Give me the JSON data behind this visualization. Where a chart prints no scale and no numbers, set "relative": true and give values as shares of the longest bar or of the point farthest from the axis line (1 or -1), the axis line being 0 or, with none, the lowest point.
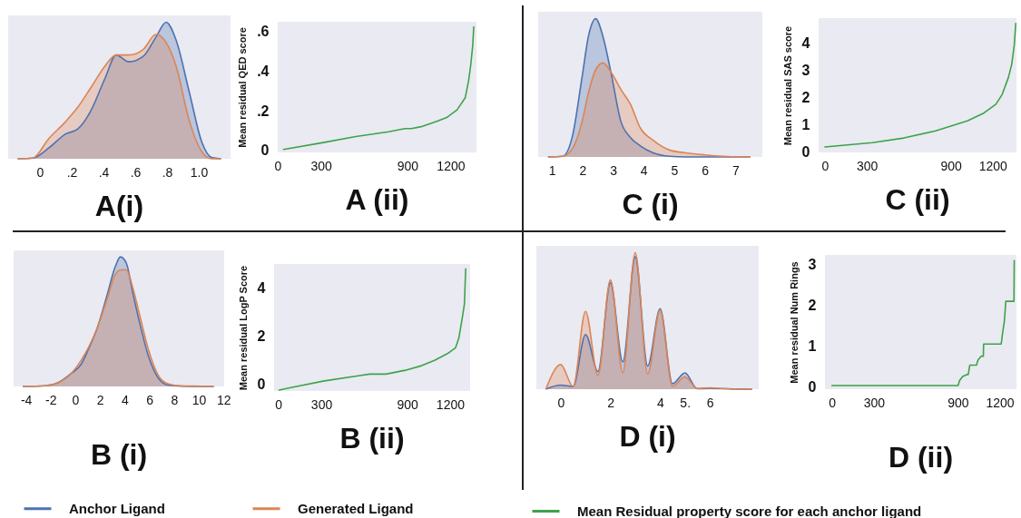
{
  "chart_data": [
    {
      "type": "area",
      "relative": true,
      "title": "A(i)",
      "x": [
        -0.14,
        -0.045,
        0.057,
        0.16,
        0.24,
        0.32,
        0.41,
        0.48,
        0.56,
        0.65,
        0.73,
        0.795,
        0.857,
        0.94,
        1.02,
        1.08,
        1.14
      ],
      "xlim": [
        -0.2,
        1.2
      ],
      "xticks": [
        0,
        {
          "value": 0.2,
          "label": ".2"
        },
        {
          "value": 0.4,
          "label": ".4"
        },
        {
          "value": 0.6,
          "label": ".6"
        },
        {
          "value": 0.8,
          "label": ".8"
        },
        {
          "value": 1,
          "label": "1.0"
        }
      ],
      "series": [
        {
          "color": "#4c72b0",
          "values": [
            0,
            0.005,
            0.08,
            0.18,
            0.22,
            0.35,
            0.59,
            0.76,
            0.71,
            0.75,
            0.89,
            1,
            0.87,
            0.49,
            0.12,
            0.01,
            0
          ]
        },
        {
          "color": "#dd8452",
          "values": [
            0,
            0.005,
            0.15,
            0.27,
            0.38,
            0.52,
            0.68,
            0.76,
            0.76,
            0.8,
            0.91,
            0.85,
            0.68,
            0.28,
            0.05,
            0,
            0
          ]
        }
      ]
    },
    {
      "type": "line",
      "title": "A (ii)",
      "ylabel": "Mean residual QED score",
      "x": [
        40,
        317,
        543,
        770,
        883,
        928,
        996,
        1109,
        1177,
        1245,
        1302,
        1325,
        1340,
        1354,
        1361
      ],
      "xlim": [
        0,
        1380
      ],
      "xticks": [
        0,
        300,
        900,
        1200
      ],
      "ylim": [
        -0.01,
        0.65
      ],
      "yticks": [
        0,
        {
          "value": 0.2,
          "label": ".2"
        },
        {
          "value": 0.4,
          "label": ".4"
        },
        {
          "value": 0.6,
          "label": ".6"
        }
      ],
      "series": [
        {
          "color": "#3da34a",
          "values": [
            0.005,
            0.04,
            0.07,
            0.094,
            0.11,
            0.11,
            0.12,
            0.148,
            0.168,
            0.205,
            0.266,
            0.35,
            0.43,
            0.53,
            0.625
          ]
        }
      ]
    },
    {
      "type": "area",
      "relative": true,
      "title": "C (i)",
      "x": [
        0.87,
        1.35,
        1.67,
        1.98,
        2.2,
        2.43,
        2.67,
        2.94,
        3.25,
        3.57,
        3.89,
        4.31,
        4.84,
        5.37,
        6.0,
        6.75,
        7.49
      ],
      "xlim": [
        0.55,
        7.88
      ],
      "xticks": [
        1,
        2,
        3,
        4,
        5,
        6,
        7
      ],
      "series": [
        {
          "color": "#4c72b0",
          "values": [
            0,
            0.005,
            0.15,
            0.57,
            0.88,
            1,
            0.87,
            0.6,
            0.26,
            0.14,
            0.08,
            0.03,
            0.005,
            0,
            0,
            0,
            0
          ]
        },
        {
          "color": "#dd8452",
          "values": [
            0,
            0.005,
            0.06,
            0.25,
            0.47,
            0.63,
            0.68,
            0.61,
            0.49,
            0.38,
            0.21,
            0.12,
            0.05,
            0.03,
            0.015,
            0.003,
            0
          ]
        }
      ]
    },
    {
      "type": "line",
      "title": "C (ii)",
      "ylabel": "Mean residual SAS score",
      "x": [
        0,
        340,
        566,
        792,
        1019,
        1132,
        1223,
        1268,
        1313,
        1336,
        1354,
        1365
      ],
      "xlim": [
        -45,
        1370
      ],
      "xticks": [
        0,
        300,
        900,
        1200
      ],
      "ylim": [
        -0.03,
        4.9
      ],
      "yticks": [
        0,
        1,
        2,
        3,
        4
      ],
      "series": [
        {
          "color": "#3da34a",
          "values": [
            0.17,
            0.33,
            0.5,
            0.76,
            1.13,
            1.4,
            1.74,
            2.1,
            2.73,
            3.2,
            3.9,
            4.71
          ]
        }
      ]
    },
    {
      "type": "area",
      "relative": true,
      "title": "B (i)",
      "legend": "bottom",
      "x": [
        -4.26,
        -2.43,
        -1.38,
        -0.33,
        0.46,
        1.12,
        1.77,
        2.56,
        3.22,
        3.66,
        4.14,
        4.66,
        5.19,
        5.97,
        6.76,
        7.55,
        8.6,
        10.17,
        11.22
      ],
      "xlim": [
        -5,
        12.06
      ],
      "xticks": [
        -4,
        -2,
        0,
        2,
        4,
        6,
        8,
        10,
        12
      ],
      "series": [
        {
          "name": "Anchor Ligand",
          "color": "#4c72b0",
          "values": [
            0,
            0.005,
            0.03,
            0.1,
            0.17,
            0.3,
            0.45,
            0.7,
            0.92,
            1,
            0.95,
            0.72,
            0.5,
            0.22,
            0.06,
            0.01,
            0.002,
            0,
            0
          ]
        },
        {
          "name": "Generated Ligand",
          "color": "#dd8452",
          "values": [
            0,
            0.005,
            0.03,
            0.1,
            0.2,
            0.31,
            0.45,
            0.67,
            0.86,
            0.9,
            0.9,
            0.76,
            0.56,
            0.27,
            0.08,
            0.02,
            0.005,
            0.002,
            0
          ]
        }
      ]
    },
    {
      "type": "line",
      "title": "B (ii)",
      "ylabel": "Mean residual LogP Score",
      "x": [
        5,
        95,
        321,
        548,
        638,
        752,
        887,
        1001,
        1091,
        1182,
        1238,
        1261,
        1284,
        1300,
        1309
      ],
      "xlim": [
        -30,
        1340
      ],
      "xticks": [
        0,
        300,
        900,
        1200
      ],
      "ylim": [
        -0.27,
        5
      ],
      "yticks": [
        0,
        2,
        4
      ],
      "series": [
        {
          "color": "#3da34a",
          "values": [
            -0.23,
            -0.12,
            0.15,
            0.35,
            0.43,
            0.43,
            0.59,
            0.78,
            1.0,
            1.28,
            1.52,
            1.92,
            2.72,
            3.33,
            4.8
          ]
        }
      ]
    },
    {
      "type": "area",
      "relative": true,
      "title": "D (i)",
      "x": [
        -0.6,
        0,
        0.5,
        1,
        1.5,
        2,
        2.5,
        3,
        3.5,
        4,
        4.5,
        5,
        5.5,
        6,
        7,
        7.7
      ],
      "xlim": [
        -0.98,
        7.97
      ],
      "xticks": [
        0,
        2,
        4,
        {
          "value": 5,
          "label": "5."
        },
        6
      ],
      "series": [
        {
          "color": "#4c72b0",
          "values": [
            0,
            0.03,
            0.02,
            0.4,
            0.13,
            0.78,
            0.2,
            0.97,
            0.17,
            0.59,
            0.04,
            0.12,
            0.003,
            0.005,
            0.002,
            0
          ]
        },
        {
          "color": "#dd8452",
          "values": [
            0,
            0.18,
            0.02,
            0.57,
            0.1,
            0.8,
            0.12,
            1,
            0.11,
            0.58,
            0.02,
            0.09,
            0.005,
            0.01,
            0,
            0
          ]
        }
      ]
    },
    {
      "type": "line",
      "title": "D (ii)",
      "ylabel": "Mean residual Num Rings",
      "legend": "bottom",
      "x": [
        0,
        902,
        913,
        935,
        968,
        975,
        986,
        1034,
        1045,
        1067,
        1083,
        1085,
        1211,
        1222,
        1233,
        1244,
        1302,
        1304
      ],
      "xlim": [
        -50,
        1320
      ],
      "xticks": [
        0,
        300,
        900,
        1200
      ],
      "ylim": [
        -0.06,
        3.24
      ],
      "yticks": [
        0,
        1,
        2,
        3
      ],
      "series": [
        {
          "name": "Mean Residual property score for each anchor ligand",
          "color": "#3da34a",
          "values": [
            0.03,
            0.03,
            0.15,
            0.25,
            0.3,
            0.3,
            0.53,
            0.53,
            0.66,
            0.75,
            0.75,
            1.05,
            1.05,
            1.35,
            1.6,
            2.1,
            2.1,
            3.1
          ]
        }
      ]
    }
  ]
}
